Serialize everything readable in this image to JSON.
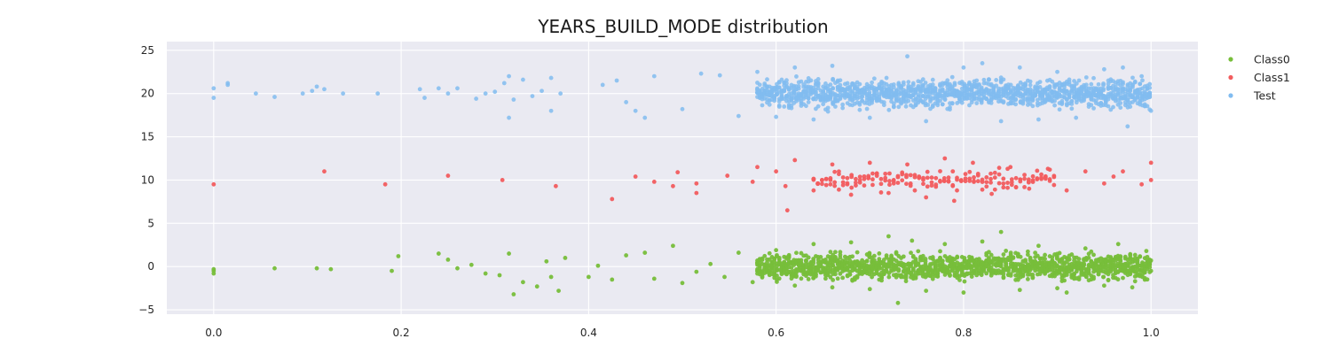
{
  "chart_data": {
    "type": "scatter",
    "title": "YEARS_BUILD_MODE distribution",
    "xlabel": "",
    "ylabel": "",
    "xlim": [
      -0.05,
      1.05
    ],
    "ylim": [
      -5.5,
      26
    ],
    "x_ticks": [
      0.0,
      0.2,
      0.4,
      0.6,
      0.8,
      1.0
    ],
    "x_tick_labels": [
      "0.0",
      "0.2",
      "0.4",
      "0.6",
      "0.8",
      "1.0"
    ],
    "y_ticks": [
      -5,
      0,
      5,
      10,
      15,
      20,
      25
    ],
    "y_tick_labels": [
      "−5",
      "0",
      "5",
      "10",
      "15",
      "20",
      "25"
    ],
    "grid": true,
    "legend_position": "top-right, outside plot",
    "background_color": "#eaeaf2",
    "series": [
      {
        "name": "Class0",
        "color": "#77be3a",
        "center": 0,
        "points": [
          [
            0.0,
            -0.3
          ],
          [
            0.0,
            -0.8
          ],
          [
            0.0,
            -0.5
          ],
          [
            0.065,
            -0.2
          ],
          [
            0.11,
            -0.2
          ],
          [
            0.125,
            -0.3
          ],
          [
            0.19,
            -0.5
          ],
          [
            0.197,
            1.2
          ],
          [
            0.24,
            1.5
          ],
          [
            0.25,
            0.8
          ],
          [
            0.26,
            -0.2
          ],
          [
            0.275,
            0.2
          ],
          [
            0.29,
            -0.8
          ],
          [
            0.305,
            -1.0
          ],
          [
            0.315,
            1.5
          ],
          [
            0.32,
            -3.2
          ],
          [
            0.33,
            -1.8
          ],
          [
            0.345,
            -2.3
          ],
          [
            0.355,
            0.6
          ],
          [
            0.36,
            -1.2
          ],
          [
            0.368,
            -2.8
          ],
          [
            0.375,
            1.0
          ],
          [
            0.4,
            -1.2
          ],
          [
            0.41,
            0.1
          ],
          [
            0.425,
            -1.5
          ],
          [
            0.44,
            1.3
          ],
          [
            0.46,
            1.6
          ],
          [
            0.47,
            -1.4
          ],
          [
            0.49,
            2.4
          ],
          [
            0.5,
            -1.9
          ],
          [
            0.515,
            -0.6
          ],
          [
            0.53,
            0.3
          ],
          [
            0.545,
            -1.2
          ],
          [
            0.56,
            1.6
          ],
          [
            0.575,
            -1.8
          ],
          [
            0.6,
            1.9
          ],
          [
            0.62,
            -2.2
          ],
          [
            0.64,
            2.6
          ],
          [
            0.66,
            -2.4
          ],
          [
            0.68,
            2.8
          ],
          [
            0.7,
            -2.6
          ],
          [
            0.72,
            3.5
          ],
          [
            0.73,
            -4.2
          ],
          [
            0.745,
            3.0
          ],
          [
            0.76,
            -2.8
          ],
          [
            0.78,
            2.6
          ],
          [
            0.8,
            -3.0
          ],
          [
            0.82,
            2.9
          ],
          [
            0.84,
            4.0
          ],
          [
            0.86,
            -2.7
          ],
          [
            0.88,
            2.4
          ],
          [
            0.9,
            -2.5
          ],
          [
            0.91,
            -3.0
          ],
          [
            0.93,
            2.1
          ],
          [
            0.95,
            -2.2
          ],
          [
            0.965,
            2.6
          ],
          [
            0.98,
            -2.4
          ],
          [
            0.995,
            1.8
          ],
          [
            1.0,
            -0.5
          ],
          [
            1.0,
            0.7
          ]
        ],
        "dense_band": {
          "x_from": 0.58,
          "x_to": 1.0,
          "half_height": 2.1
        }
      },
      {
        "name": "Class1",
        "color": "#f25c5e",
        "center": 10,
        "points": [
          [
            0.0,
            9.5
          ],
          [
            0.118,
            11.0
          ],
          [
            0.183,
            9.5
          ],
          [
            0.25,
            10.5
          ],
          [
            0.308,
            10.0
          ],
          [
            0.365,
            9.3
          ],
          [
            0.425,
            7.8
          ],
          [
            0.45,
            10.4
          ],
          [
            0.47,
            9.8
          ],
          [
            0.49,
            9.3
          ],
          [
            0.495,
            10.9
          ],
          [
            0.515,
            9.6
          ],
          [
            0.515,
            8.5
          ],
          [
            0.548,
            10.5
          ],
          [
            0.575,
            9.8
          ],
          [
            0.58,
            11.5
          ],
          [
            0.6,
            11.0
          ],
          [
            0.61,
            9.3
          ],
          [
            0.612,
            6.5
          ],
          [
            0.62,
            12.3
          ],
          [
            0.64,
            8.8
          ],
          [
            0.66,
            11.8
          ],
          [
            0.68,
            8.3
          ],
          [
            0.7,
            12.0
          ],
          [
            0.72,
            8.5
          ],
          [
            0.74,
            11.8
          ],
          [
            0.76,
            8.0
          ],
          [
            0.78,
            12.5
          ],
          [
            0.79,
            7.6
          ],
          [
            0.81,
            12.0
          ],
          [
            0.83,
            8.4
          ],
          [
            0.85,
            11.5
          ],
          [
            0.87,
            9.0
          ],
          [
            0.89,
            11.3
          ],
          [
            0.91,
            8.8
          ],
          [
            0.93,
            11.0
          ],
          [
            0.95,
            9.6
          ],
          [
            0.97,
            11.0
          ],
          [
            0.99,
            9.5
          ],
          [
            1.0,
            12.0
          ],
          [
            1.0,
            10.0
          ],
          [
            0.96,
            10.4
          ]
        ],
        "dense_band": {
          "x_from": 0.64,
          "x_to": 0.9,
          "half_height": 1.7
        }
      },
      {
        "name": "Test",
        "color": "#81bcf0",
        "center": 20,
        "points": [
          [
            0.0,
            20.6
          ],
          [
            0.0,
            19.5
          ],
          [
            0.015,
            21.0
          ],
          [
            0.015,
            21.2
          ],
          [
            0.045,
            20.0
          ],
          [
            0.065,
            19.6
          ],
          [
            0.095,
            20.0
          ],
          [
            0.105,
            20.3
          ],
          [
            0.11,
            20.8
          ],
          [
            0.118,
            20.5
          ],
          [
            0.138,
            20.0
          ],
          [
            0.175,
            20.0
          ],
          [
            0.22,
            20.5
          ],
          [
            0.225,
            19.5
          ],
          [
            0.24,
            20.6
          ],
          [
            0.25,
            20.0
          ],
          [
            0.26,
            20.6
          ],
          [
            0.28,
            19.4
          ],
          [
            0.29,
            20.0
          ],
          [
            0.3,
            20.2
          ],
          [
            0.31,
            21.2
          ],
          [
            0.315,
            22.0
          ],
          [
            0.315,
            17.2
          ],
          [
            0.32,
            19.3
          ],
          [
            0.33,
            21.6
          ],
          [
            0.34,
            19.7
          ],
          [
            0.35,
            20.3
          ],
          [
            0.36,
            21.8
          ],
          [
            0.36,
            18.0
          ],
          [
            0.37,
            20.0
          ],
          [
            0.415,
            21.0
          ],
          [
            0.43,
            21.5
          ],
          [
            0.44,
            19.0
          ],
          [
            0.45,
            18.0
          ],
          [
            0.46,
            17.2
          ],
          [
            0.47,
            22.0
          ],
          [
            0.5,
            18.2
          ],
          [
            0.52,
            22.3
          ],
          [
            0.54,
            22.1
          ],
          [
            0.56,
            17.4
          ],
          [
            0.58,
            22.5
          ],
          [
            0.6,
            17.3
          ],
          [
            0.62,
            23.0
          ],
          [
            0.64,
            17.0
          ],
          [
            0.66,
            23.2
          ],
          [
            0.7,
            17.2
          ],
          [
            0.74,
            24.3
          ],
          [
            0.76,
            16.8
          ],
          [
            0.8,
            23.0
          ],
          [
            0.82,
            23.5
          ],
          [
            0.84,
            16.8
          ],
          [
            0.86,
            23.0
          ],
          [
            0.88,
            17.0
          ],
          [
            0.9,
            22.5
          ],
          [
            0.92,
            17.2
          ],
          [
            0.95,
            22.8
          ],
          [
            0.975,
            16.2
          ],
          [
            0.97,
            23.0
          ],
          [
            0.99,
            22.0
          ],
          [
            1.0,
            18.0
          ]
        ],
        "dense_band": {
          "x_from": 0.58,
          "x_to": 1.0,
          "half_height": 2.2
        }
      }
    ]
  }
}
